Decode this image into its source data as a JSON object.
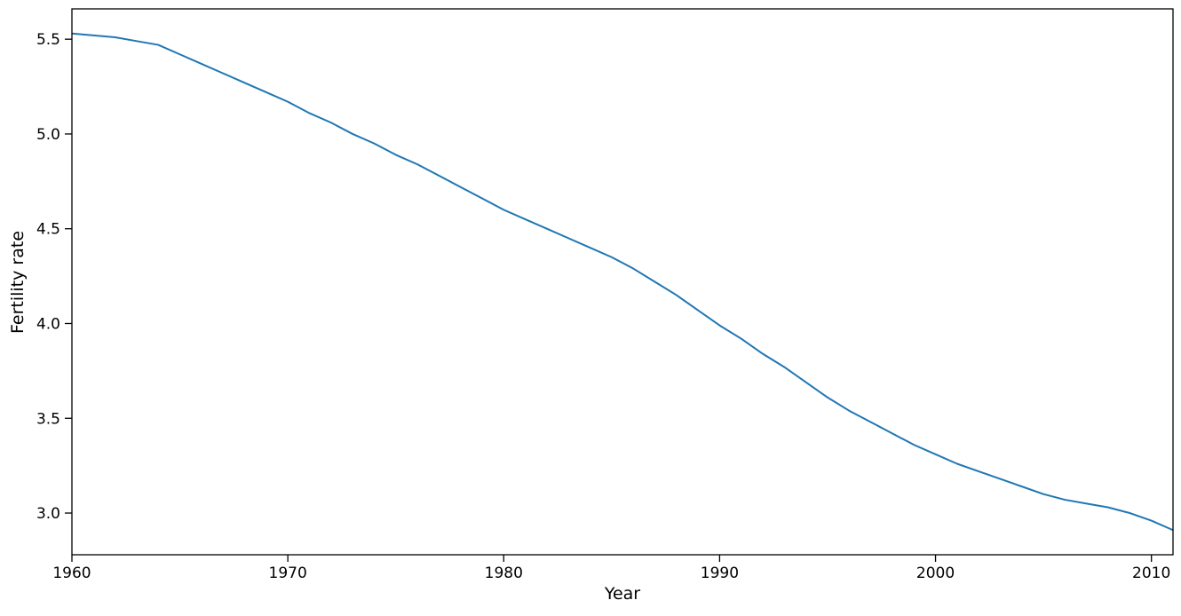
{
  "chart_data": {
    "type": "line",
    "title": "",
    "xlabel": "Year",
    "ylabel": "Fertility rate",
    "grid": false,
    "legend_position": "none",
    "background_color": "#ffffff",
    "axes_color": "#000000",
    "xlim": [
      1960,
      2011
    ],
    "ylim": [
      2.78,
      5.66
    ],
    "xticks": [
      1960,
      1970,
      1980,
      1990,
      2000,
      2010
    ],
    "xtick_labels": [
      "1960",
      "1970",
      "1980",
      "1990",
      "2000",
      "2010"
    ],
    "yticks": [
      3.0,
      3.5,
      4.0,
      4.5,
      5.0,
      5.5
    ],
    "ytick_labels": [
      "3.0",
      "3.5",
      "4.0",
      "4.5",
      "5.0",
      "5.5"
    ],
    "x": [
      1960,
      1961,
      1962,
      1963,
      1964,
      1965,
      1966,
      1967,
      1968,
      1969,
      1970,
      1971,
      1972,
      1973,
      1974,
      1975,
      1976,
      1977,
      1978,
      1979,
      1980,
      1981,
      1982,
      1983,
      1984,
      1985,
      1986,
      1987,
      1988,
      1989,
      1990,
      1991,
      1992,
      1993,
      1994,
      1995,
      1996,
      1997,
      1998,
      1999,
      2000,
      2001,
      2002,
      2003,
      2004,
      2005,
      2006,
      2007,
      2008,
      2009,
      2010,
      2011
    ],
    "series": [
      {
        "name": "Fertility rate",
        "color": "#1f77b4",
        "line_width": 2,
        "values": [
          5.53,
          5.52,
          5.51,
          5.49,
          5.47,
          5.42,
          5.37,
          5.32,
          5.27,
          5.22,
          5.17,
          5.11,
          5.06,
          5.0,
          4.95,
          4.89,
          4.84,
          4.78,
          4.72,
          4.66,
          4.6,
          4.55,
          4.5,
          4.45,
          4.4,
          4.35,
          4.29,
          4.22,
          4.15,
          4.07,
          3.99,
          3.92,
          3.84,
          3.77,
          3.69,
          3.61,
          3.54,
          3.48,
          3.42,
          3.36,
          3.31,
          3.26,
          3.22,
          3.18,
          3.14,
          3.1,
          3.07,
          3.05,
          3.03,
          3.0,
          2.96,
          2.91
        ]
      }
    ]
  }
}
